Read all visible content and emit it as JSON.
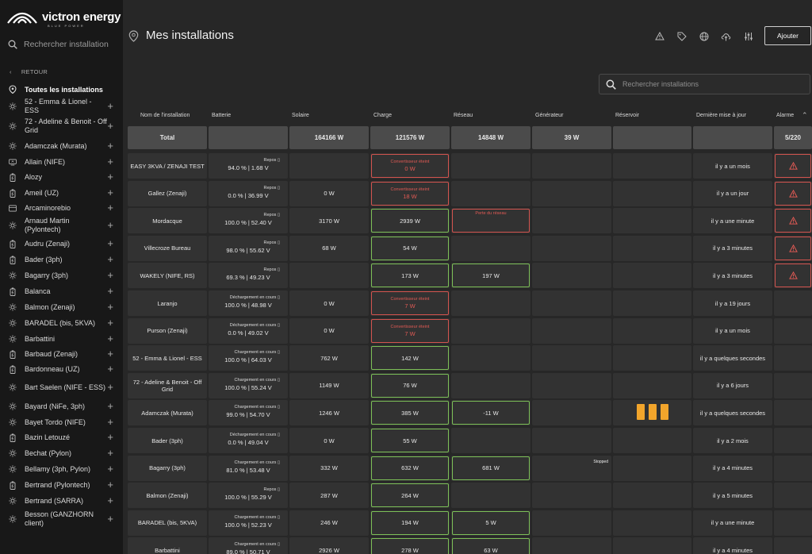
{
  "brand": {
    "name": "victron energy",
    "tagline": "BLUE POWER"
  },
  "sidebar": {
    "search_placeholder": "Rechercher installation",
    "back_label": "RETOUR",
    "all_label": "Toutes les installations",
    "items": [
      {
        "label": "52 - Emma & Lionel - ESS",
        "icon": "sun-icon"
      },
      {
        "label": "72 - Adeline & Benoit - Off Grid",
        "icon": "sun-icon"
      },
      {
        "label": "Adamczak (Murata)",
        "icon": "sun-icon"
      },
      {
        "label": "Allain (NIFE)",
        "icon": "monitor-icon"
      },
      {
        "label": "Alozy",
        "icon": "battery-icon"
      },
      {
        "label": "Ameil (UZ)",
        "icon": "battery-icon"
      },
      {
        "label": "Arcaminorebio",
        "icon": "device-icon"
      },
      {
        "label": "Arnaud Martin (Pylontech)",
        "icon": "sun-icon"
      },
      {
        "label": "Audru (Zenaji)",
        "icon": "battery-icon"
      },
      {
        "label": "Bader (3ph)",
        "icon": "battery-icon"
      },
      {
        "label": "Bagarry (3ph)",
        "icon": "sun-icon"
      },
      {
        "label": "Balanca",
        "icon": "battery-icon"
      },
      {
        "label": "Balmon (Zenaji)",
        "icon": "sun-icon"
      },
      {
        "label": "BARADEL (bis, 5KVA)",
        "icon": "sun-icon"
      },
      {
        "label": "Barbattini",
        "icon": "sun-icon"
      },
      {
        "label": "Barbaud (Zenaji)",
        "icon": "battery-icon"
      },
      {
        "label": "Bardonneau (UZ)",
        "icon": "battery-icon"
      },
      {
        "label": "Bart Saelen (NIFE - ESS)",
        "icon": "sun-icon"
      },
      {
        "label": "Bayard (NiFe, 3ph)",
        "icon": "sun-icon"
      },
      {
        "label": "Bayet Tordo (NIFE)",
        "icon": "sun-icon"
      },
      {
        "label": "Bazin Letouzé",
        "icon": "battery-icon"
      },
      {
        "label": "Bechat (Pylon)",
        "icon": "sun-icon"
      },
      {
        "label": "Bellamy (3ph, Pylon)",
        "icon": "sun-icon"
      },
      {
        "label": "Bertrand (Pylontech)",
        "icon": "battery-icon"
      },
      {
        "label": "Bertrand (SARRA)",
        "icon": "sun-icon"
      },
      {
        "label": "Besson (GANZHORN client)",
        "icon": "sun-icon"
      }
    ]
  },
  "header": {
    "title": "Mes installations",
    "add_label": "Ajouter",
    "icons": [
      "warning-icon",
      "tag-icon",
      "globe-icon",
      "cloud-upload-icon",
      "sliders-icon"
    ]
  },
  "main_search_placeholder": "Rechercher installations",
  "table": {
    "columns": [
      "Nom de l'installation",
      "Batterie",
      "Solaire",
      "Charge",
      "Réseau",
      "Générateur",
      "Réservoir",
      "Dernière mise à jour",
      "Alarme"
    ],
    "total": {
      "name": "Total",
      "solar": "164166 W",
      "charge": "121576 W",
      "grid": "14848 W",
      "gen": "39 W",
      "alarm": "5/220"
    },
    "rows": [
      {
        "name": "EASY 3KVA / ZENAJI TEST",
        "bstate": "Repos",
        "batt": "94.0 %  |  1.68 V",
        "solar": "",
        "cstate": "Convertisseur éteint",
        "charge": "0 W",
        "cstyle": "red",
        "grid": "",
        "gstyle": "",
        "gen_note": "",
        "tank": false,
        "updated": "il y a un mois",
        "alarm": true
      },
      {
        "name": "Gallez (Zenaji)",
        "bstate": "Repos",
        "batt": "0.0 %  |  36.99 V",
        "solar": "0 W",
        "cstate": "Convertisseur éteint",
        "charge": "18 W",
        "cstyle": "red",
        "grid": "",
        "gstyle": "",
        "gen_note": "",
        "tank": false,
        "updated": "il y a un jour",
        "alarm": true
      },
      {
        "name": "Mordacque",
        "bstate": "Repos",
        "batt": "100.0 %  |  52.40 V",
        "solar": "3170 W",
        "cstate": "",
        "charge": "2939 W",
        "cstyle": "green",
        "grid": "Perte du réseau",
        "gstyle": "redtext",
        "gen_note": "",
        "tank": false,
        "updated": "il y a une minute",
        "alarm": true
      },
      {
        "name": "Villecroze Bureau",
        "bstate": "Repos",
        "batt": "98.0 %  |  55.62 V",
        "solar": "68 W",
        "cstate": "",
        "charge": "54 W",
        "cstyle": "green",
        "grid": "",
        "gstyle": "",
        "gen_note": "",
        "tank": false,
        "updated": "il y a 3 minutes",
        "alarm": true
      },
      {
        "name": "WAKELY (NIFE, RS)",
        "bstate": "Repos",
        "batt": "69.3 %  |  49.23 V",
        "solar": "",
        "cstate": "",
        "charge": "173 W",
        "cstyle": "green",
        "grid": "197 W",
        "gstyle": "green",
        "gen_note": "",
        "tank": false,
        "updated": "il y a 3 minutes",
        "alarm": true
      },
      {
        "name": "Laranjo",
        "bstate": "Déchargement en cours",
        "batt": "100.0 %  |  48.98 V",
        "solar": "0 W",
        "cstate": "Convertisseur éteint",
        "charge": "7 W",
        "cstyle": "red",
        "grid": "",
        "gstyle": "",
        "gen_note": "",
        "tank": false,
        "updated": "il y a 19 jours",
        "alarm": false
      },
      {
        "name": "Purson (Zenaji)",
        "bstate": "Déchargement en cours",
        "batt": "0.0 %  |  49.02 V",
        "solar": "0 W",
        "cstate": "Convertisseur éteint",
        "charge": "7 W",
        "cstyle": "red",
        "grid": "",
        "gstyle": "",
        "gen_note": "",
        "tank": false,
        "updated": "il y a un mois",
        "alarm": false
      },
      {
        "name": "52 - Emma & Lionel - ESS",
        "bstate": "Chargement en cours",
        "batt": "100.0 %  |  64.03 V",
        "solar": "762 W",
        "cstate": "",
        "charge": "142 W",
        "cstyle": "green",
        "grid": "",
        "gstyle": "",
        "gen_note": "",
        "tank": false,
        "updated": "il y a quelques secondes",
        "alarm": false
      },
      {
        "name": "72 - Adeline & Benoit - Off Grid",
        "bstate": "Chargement en cours",
        "batt": "100.0 %  |  55.24 V",
        "solar": "1149 W",
        "cstate": "",
        "charge": "76 W",
        "cstyle": "green",
        "grid": "",
        "gstyle": "",
        "gen_note": "",
        "tank": false,
        "updated": "il y a 6 jours",
        "alarm": false
      },
      {
        "name": "Adamczak (Murata)",
        "bstate": "Chargement en cours",
        "batt": "99.0 %  |  54.70 V",
        "solar": "1246 W",
        "cstate": "",
        "charge": "385 W",
        "cstyle": "green",
        "grid": "-11 W",
        "gstyle": "green",
        "gen_note": "",
        "tank": true,
        "updated": "il y a quelques secondes",
        "alarm": false
      },
      {
        "name": "Bader (3ph)",
        "bstate": "Déchargement en cours",
        "batt": "0.0 %  |  49.04 V",
        "solar": "0 W",
        "cstate": "",
        "charge": "55 W",
        "cstyle": "green",
        "grid": "",
        "gstyle": "",
        "gen_note": "",
        "tank": false,
        "updated": "il y a 2 mois",
        "alarm": false
      },
      {
        "name": "Bagarry (3ph)",
        "bstate": "Chargement en cours",
        "batt": "81.0 %  |  53.48 V",
        "solar": "332 W",
        "cstate": "",
        "charge": "632 W",
        "cstyle": "green",
        "grid": "681 W",
        "gstyle": "green",
        "gen_note": "Stopped",
        "tank": false,
        "updated": "il y a 4 minutes",
        "alarm": false
      },
      {
        "name": "Balmon (Zenaji)",
        "bstate": "Repos",
        "batt": "100.0 %  |  55.29 V",
        "solar": "287 W",
        "cstate": "",
        "charge": "264 W",
        "cstyle": "green",
        "grid": "",
        "gstyle": "",
        "gen_note": "",
        "tank": false,
        "updated": "il y a 5 minutes",
        "alarm": false
      },
      {
        "name": "BARADEL (bis, 5KVA)",
        "bstate": "Chargement en cours",
        "batt": "100.0 %  |  52.23 V",
        "solar": "246 W",
        "cstate": "",
        "charge": "194 W",
        "cstyle": "green",
        "grid": "5 W",
        "gstyle": "green",
        "gen_note": "",
        "tank": false,
        "updated": "il y a une minute",
        "alarm": false
      },
      {
        "name": "Barbattini",
        "bstate": "Chargement en cours",
        "batt": "89.0 %  |  50.71 V",
        "solar": "2926 W",
        "cstate": "",
        "charge": "278 W",
        "cstyle": "green",
        "grid": "63 W",
        "gstyle": "green",
        "gen_note": "",
        "tank": false,
        "updated": "il y a 4 minutes",
        "alarm": false
      }
    ]
  },
  "colors": {
    "accent_green": "#7cbf57",
    "alert_red": "#d2534e",
    "tank_orange": "#f2a52b"
  }
}
